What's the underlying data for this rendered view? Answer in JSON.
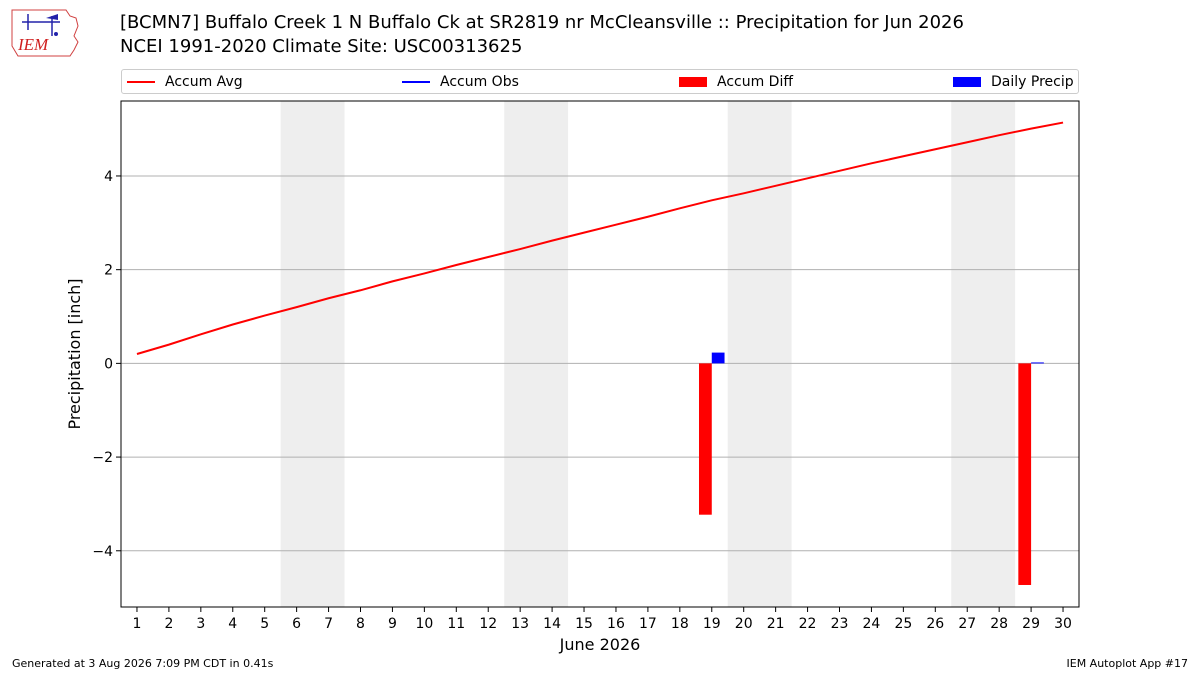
{
  "logo": {
    "text": "IEM",
    "icon": "iem-logo-icon"
  },
  "title": {
    "line1": "[BCMN7] Buffalo Creek 1 N Buffalo Ck at SR2819 nr McCleansville :: Precipitation for Jun 2026",
    "line2": "NCEI 1991-2020 Climate Site: USC00313625"
  },
  "legend": {
    "items": [
      {
        "label": "Accum Avg",
        "color": "#ff0000",
        "kind": "line"
      },
      {
        "label": "Accum Obs",
        "color": "#0000ff",
        "kind": "line"
      },
      {
        "label": "Accum Diff",
        "color": "#ff0000",
        "kind": "bar"
      },
      {
        "label": "Daily Precip",
        "color": "#0000ff",
        "kind": "bar"
      }
    ]
  },
  "chart_data": {
    "type": "line",
    "xlabel": "June 2026",
    "ylabel": "Precipitation [inch]",
    "xlim": [
      0.5,
      30.5
    ],
    "ylim": [
      -5.2,
      5.6
    ],
    "x": [
      1,
      2,
      3,
      4,
      5,
      6,
      7,
      8,
      9,
      10,
      11,
      12,
      13,
      14,
      15,
      16,
      17,
      18,
      19,
      20,
      21,
      22,
      23,
      24,
      25,
      26,
      27,
      28,
      29,
      30
    ],
    "yticks": [
      -4,
      -2,
      0,
      2,
      4
    ],
    "ytick_labels": [
      "−4",
      "−2",
      "0",
      "2",
      "4"
    ],
    "grid": "y",
    "weekend_spans": [
      [
        6,
        7
      ],
      [
        13,
        14
      ],
      [
        20,
        21
      ],
      [
        27,
        28
      ]
    ],
    "series": [
      {
        "name": "Accum Avg",
        "kind": "line",
        "color": "#ff0000",
        "values": [
          0.2,
          0.4,
          0.62,
          0.83,
          1.02,
          1.2,
          1.39,
          1.56,
          1.75,
          1.92,
          2.1,
          2.27,
          2.44,
          2.62,
          2.79,
          2.96,
          3.13,
          3.31,
          3.48,
          3.63,
          3.79,
          3.95,
          4.11,
          4.27,
          4.42,
          4.57,
          4.72,
          4.87,
          5.01,
          5.14
        ]
      },
      {
        "name": "Accum Diff",
        "kind": "bar",
        "color": "#ff0000",
        "points": [
          {
            "x": 19,
            "y": -3.23
          },
          {
            "x": 29,
            "y": -4.73
          }
        ]
      },
      {
        "name": "Daily Precip",
        "kind": "bar",
        "color": "#0000ff",
        "points": [
          {
            "x": 19,
            "y": 0.23
          },
          {
            "x": 29,
            "y": 0.02
          }
        ]
      }
    ]
  },
  "footer": {
    "left": "Generated at 3 Aug 2026 7:09 PM CDT in 0.41s",
    "right": "IEM Autoplot App #17"
  }
}
